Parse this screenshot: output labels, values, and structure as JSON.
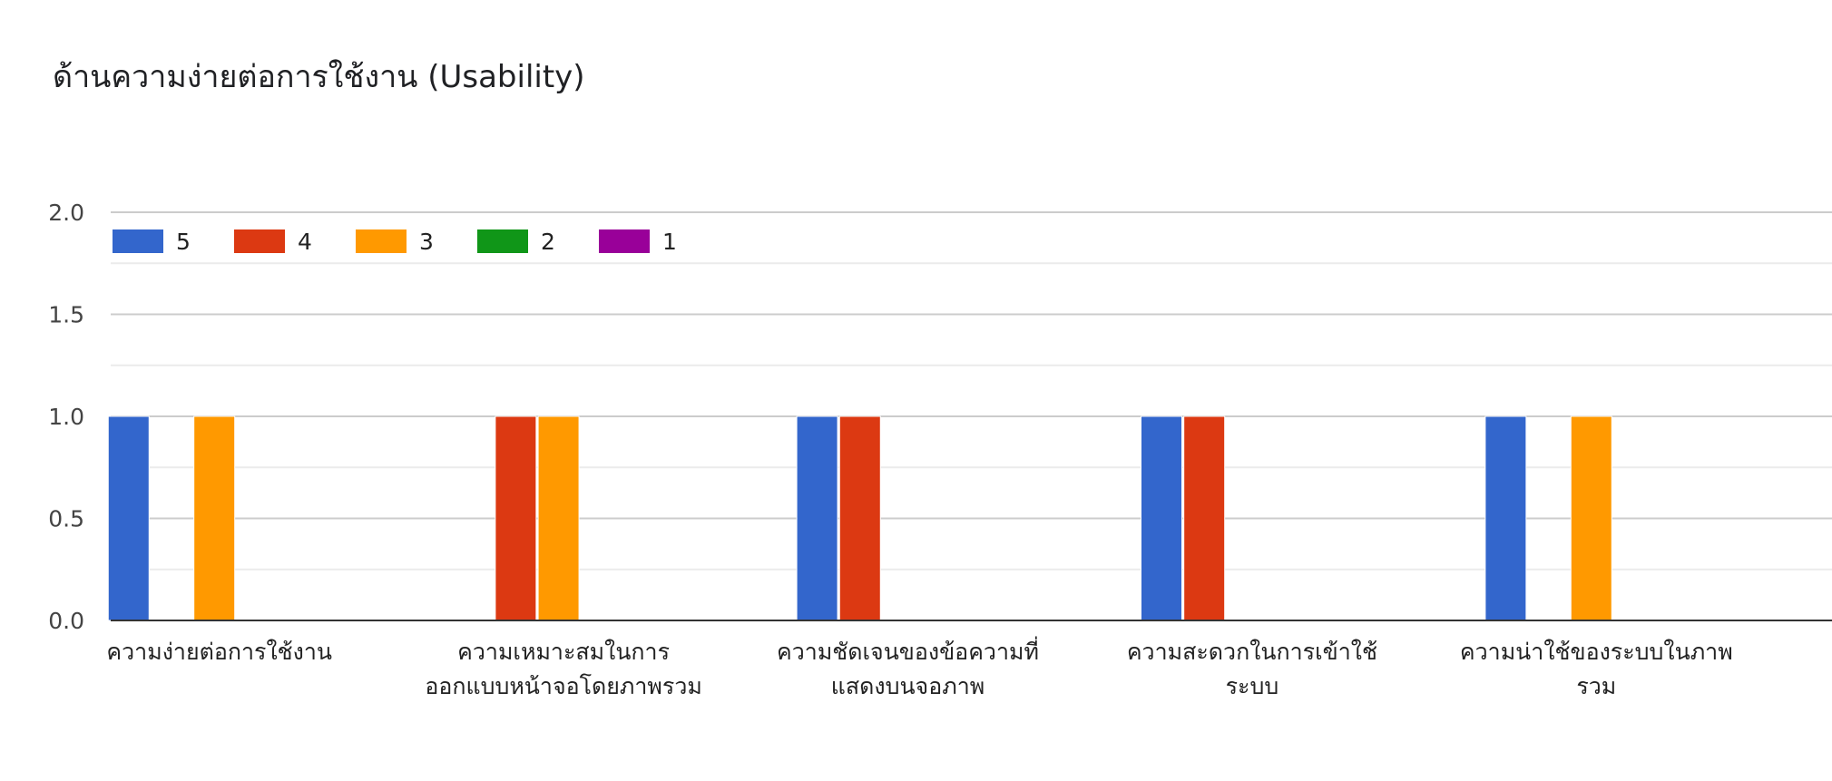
{
  "chart_data": {
    "type": "bar",
    "title": "ด้านความง่ายต่อการใช้งาน (Usability)",
    "xlabel": "",
    "ylabel": "",
    "ylim": [
      0,
      2.0
    ],
    "yticks": [
      "0.0",
      "0.5",
      "1.0",
      "1.5",
      "2.0"
    ],
    "grid": true,
    "legend_position": "top-left",
    "categories": [
      [
        "ความง่ายต่อการใช้งาน"
      ],
      [
        "ความเหมาะสมในการ",
        "ออกแบบหน้าจอโดยภาพรวม"
      ],
      [
        "ความชัดเจนของข้อความที่",
        "แสดงบนจอภาพ"
      ],
      [
        "ความสะดวกในการเข้าใช้",
        "ระบบ"
      ],
      [
        "ความน่าใช้ของระบบในภาพ",
        "รวม"
      ]
    ],
    "series": [
      {
        "name": "5",
        "color": "#3366cc",
        "values": [
          1,
          0,
          1,
          1,
          1
        ]
      },
      {
        "name": "4",
        "color": "#dc3912",
        "values": [
          0,
          1,
          1,
          1,
          0
        ]
      },
      {
        "name": "3",
        "color": "#ff9900",
        "values": [
          1,
          1,
          0,
          0,
          1
        ]
      },
      {
        "name": "2",
        "color": "#109618",
        "values": [
          0,
          0,
          0,
          0,
          0
        ]
      },
      {
        "name": "1",
        "color": "#990099",
        "values": [
          0,
          0,
          0,
          0,
          0
        ]
      }
    ]
  }
}
